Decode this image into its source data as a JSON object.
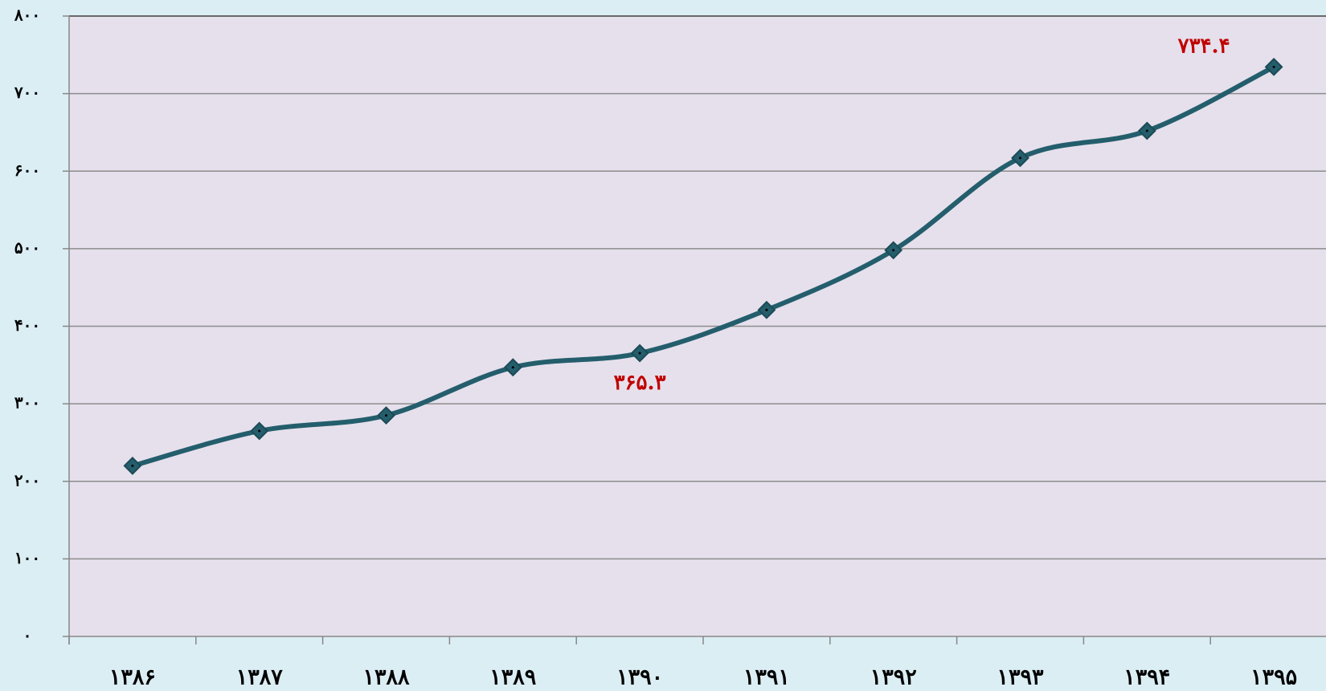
{
  "chart_data": {
    "type": "line",
    "categories": [
      "۱۳۸۶",
      "۱۳۸۷",
      "۱۳۸۸",
      "۱۳۸۹",
      "۱۳۹۰",
      "۱۳۹۱",
      "۱۳۹۲",
      "۱۳۹۳",
      "۱۳۹۴",
      "۱۳۹۵"
    ],
    "series": [
      {
        "color": "#245e6c",
        "values": [
          220,
          265,
          285,
          347,
          365.3,
          421,
          498,
          617,
          652,
          734.4
        ],
        "value_labels": [
          null,
          null,
          null,
          null,
          "۳۶۵.۳",
          null,
          null,
          null,
          null,
          "۷۳۴.۴"
        ]
      }
    ],
    "ylim": [
      0,
      800
    ],
    "yticks": [
      {
        "value": 0,
        "label": "۰"
      },
      {
        "value": 100,
        "label": "۱۰۰"
      },
      {
        "value": 200,
        "label": "۲۰۰"
      },
      {
        "value": 300,
        "label": "۳۰۰"
      },
      {
        "value": 400,
        "label": "۴۰۰"
      },
      {
        "value": 500,
        "label": "۵۰۰"
      },
      {
        "value": 600,
        "label": "۶۰۰"
      },
      {
        "value": 700,
        "label": "۷۰۰"
      },
      {
        "value": 800,
        "label": "۸۰۰"
      }
    ],
    "grid": true,
    "smooth": true
  }
}
